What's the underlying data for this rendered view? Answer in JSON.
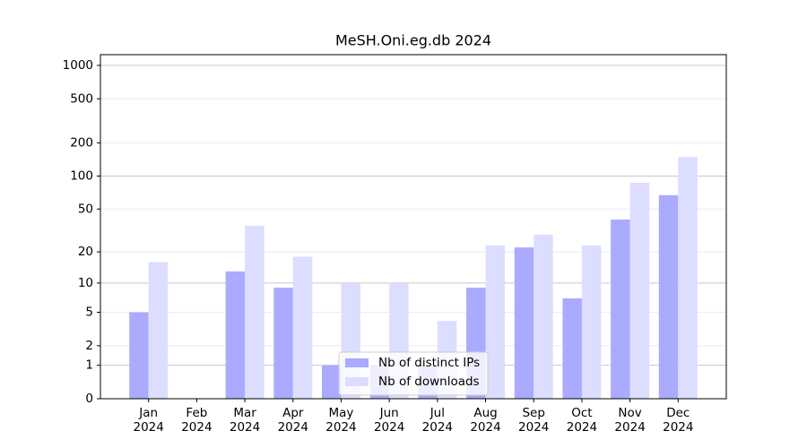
{
  "chart_data": {
    "type": "bar",
    "title": "MeSH.Oni.eg.db 2024",
    "categories": [
      "Jan\n2024",
      "Feb\n2024",
      "Mar\n2024",
      "Apr\n2024",
      "May\n2024",
      "Jun\n2024",
      "Jul\n2024",
      "Aug\n2024",
      "Sep\n2024",
      "Oct\n2024",
      "Nov\n2024",
      "Dec\n2024"
    ],
    "series": [
      {
        "name": "Nb of distinct IPs",
        "color": "#aaaaff",
        "values": [
          5,
          0,
          13,
          9,
          1,
          1,
          1,
          9,
          22,
          7,
          40,
          67
        ]
      },
      {
        "name": "Nb of downloads",
        "color": "#ddddff",
        "values": [
          16,
          0,
          35,
          18,
          10,
          10,
          4,
          23,
          29,
          23,
          87,
          149
        ]
      }
    ],
    "yscale": "log1p",
    "ylim": [
      0,
      1250
    ],
    "yticks": [
      0,
      1,
      2,
      5,
      10,
      20,
      50,
      100,
      200,
      500,
      1000
    ],
    "grid": true,
    "legend": "lower center"
  }
}
